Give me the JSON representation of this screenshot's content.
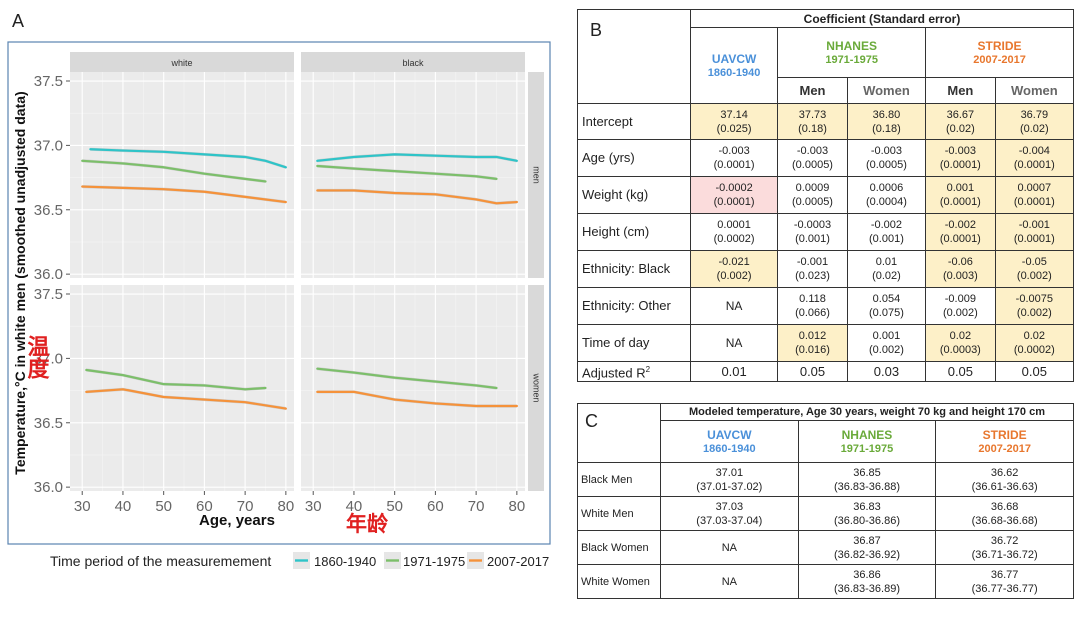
{
  "panel_a": {
    "letter": "A",
    "cjk_temp": "温度",
    "cjk_age": "年龄",
    "chart_data": {
      "type": "line",
      "ylabel": "Temperature,°C in white men (smoothed unadjusted data)",
      "xlabel": "Age, years",
      "xlim": [
        27,
        82
      ],
      "ylim": [
        35.97,
        37.57
      ],
      "x_ticks": [
        "30",
        "40",
        "50",
        "60",
        "70",
        "80"
      ],
      "y_ticks": [
        "36.0",
        "36.5",
        "37.0",
        "37.5"
      ],
      "facet_cols": [
        "white",
        "black"
      ],
      "facet_rows": [
        "men",
        "women"
      ],
      "legend_title": "Time period of the measuremement",
      "legend": [
        {
          "label": "1860-1940",
          "color": "#2ec4c8"
        },
        {
          "label": "1971-1975",
          "color": "#7cbf6a"
        },
        {
          "label": "2007-2017",
          "color": "#f5923a"
        }
      ],
      "grid": true,
      "panels": [
        {
          "col": "white",
          "row": "men",
          "series": [
            {
              "name": "1860-1940",
              "x": [
                32,
                40,
                50,
                60,
                70,
                75,
                80
              ],
              "y": [
                36.97,
                36.96,
                36.95,
                36.93,
                36.91,
                36.88,
                36.83
              ]
            },
            {
              "name": "1971-1975",
              "x": [
                30,
                40,
                50,
                60,
                70,
                75
              ],
              "y": [
                36.88,
                36.86,
                36.83,
                36.78,
                36.74,
                36.72
              ]
            },
            {
              "name": "2007-2017",
              "x": [
                30,
                40,
                50,
                60,
                70,
                80
              ],
              "y": [
                36.68,
                36.67,
                36.66,
                36.64,
                36.6,
                36.56
              ]
            }
          ]
        },
        {
          "col": "black",
          "row": "men",
          "series": [
            {
              "name": "1860-1940",
              "x": [
                31,
                40,
                50,
                60,
                70,
                75,
                80
              ],
              "y": [
                36.88,
                36.91,
                36.93,
                36.92,
                36.91,
                36.91,
                36.88
              ]
            },
            {
              "name": "1971-1975",
              "x": [
                31,
                40,
                50,
                60,
                70,
                75
              ],
              "y": [
                36.84,
                36.82,
                36.8,
                36.78,
                36.76,
                36.74
              ]
            },
            {
              "name": "2007-2017",
              "x": [
                31,
                40,
                50,
                60,
                70,
                75,
                80
              ],
              "y": [
                36.65,
                36.65,
                36.63,
                36.62,
                36.58,
                36.55,
                36.56
              ]
            }
          ]
        },
        {
          "col": "white",
          "row": "women",
          "series": [
            {
              "name": "1971-1975",
              "x": [
                31,
                40,
                50,
                60,
                70,
                75
              ],
              "y": [
                36.91,
                36.87,
                36.8,
                36.79,
                36.76,
                36.77
              ]
            },
            {
              "name": "2007-2017",
              "x": [
                31,
                40,
                50,
                60,
                70,
                80
              ],
              "y": [
                36.74,
                36.76,
                36.7,
                36.68,
                36.66,
                36.61
              ]
            }
          ]
        },
        {
          "col": "black",
          "row": "women",
          "series": [
            {
              "name": "1971-1975",
              "x": [
                31,
                40,
                50,
                60,
                70,
                75
              ],
              "y": [
                36.92,
                36.89,
                36.85,
                36.82,
                36.79,
                36.77
              ]
            },
            {
              "name": "2007-2017",
              "x": [
                31,
                40,
                50,
                60,
                70,
                80
              ],
              "y": [
                36.74,
                36.74,
                36.68,
                36.65,
                36.63,
                36.63
              ]
            }
          ]
        }
      ]
    }
  },
  "panel_b": {
    "letter": "B",
    "header": "Coefficient (Standard error)",
    "sources": [
      {
        "name": "UAVCW",
        "years": "1860-1940",
        "color": "#4a90d9"
      },
      {
        "name": "NHANES",
        "years": "1971-1975",
        "color": "#6aaa3a"
      },
      {
        "name": "STRIDE",
        "years": "2007-2017",
        "color": "#e8772e"
      }
    ],
    "sex_men": "Men",
    "sex_women": "Women",
    "rows": [
      {
        "label": "Intercept",
        "cells": [
          [
            "37.14",
            "(0.025)"
          ],
          [
            "37.73",
            "(0.18)"
          ],
          [
            "36.80",
            "(0.18)"
          ],
          [
            "36.67",
            "(0.02)"
          ],
          [
            "36.79",
            "(0.02)"
          ]
        ]
      },
      {
        "label": "Age (yrs)",
        "cells": [
          [
            "-0.003",
            "(0.0001)"
          ],
          [
            "-0.003",
            "(0.0005)"
          ],
          [
            "-0.003",
            "(0.0005)"
          ],
          [
            "-0.003",
            "(0.0001)"
          ],
          [
            "-0.004",
            "(0.0001)"
          ]
        ]
      },
      {
        "label": "Weight (kg)",
        "cells": [
          [
            "-0.0002",
            "(0.0001)"
          ],
          [
            "0.0009",
            "(0.0005)"
          ],
          [
            "0.0006",
            "(0.0004)"
          ],
          [
            "0.001",
            "(0.0001)"
          ],
          [
            "0.0007",
            "(0.0001)"
          ]
        ]
      },
      {
        "label": "Height (cm)",
        "cells": [
          [
            "0.0001",
            "(0.0002)"
          ],
          [
            "-0.0003",
            "(0.001)"
          ],
          [
            "-0.002",
            "(0.001)"
          ],
          [
            "-0.002",
            "(0.0001)"
          ],
          [
            "-0.001",
            "(0.0001)"
          ]
        ]
      },
      {
        "label": "Ethnicity: Black",
        "cells": [
          [
            "-0.021",
            "(0.002)"
          ],
          [
            "-0.001",
            "(0.023)"
          ],
          [
            "0.01",
            "(0.02)"
          ],
          [
            "-0.06",
            "(0.003)"
          ],
          [
            "-0.05",
            "(0.002)"
          ]
        ]
      },
      {
        "label": "Ethnicity: Other",
        "cells": [
          [
            "NA",
            ""
          ],
          [
            "0.118",
            "(0.066)"
          ],
          [
            "0.054",
            "(0.075)"
          ],
          [
            "-0.009",
            "(0.002)"
          ],
          [
            "-0.0075",
            "(0.002)"
          ]
        ]
      },
      {
        "label": "Time of day",
        "cells": [
          [
            "NA",
            ""
          ],
          [
            "0.012",
            "(0.016)"
          ],
          [
            "0.001",
            "(0.002)"
          ],
          [
            "0.02",
            "(0.0003)"
          ],
          [
            "0.02",
            "(0.0002)"
          ]
        ]
      }
    ],
    "adjusted_label": "Adjusted R",
    "adjusted_sup": "2",
    "adjusted_values": [
      "0.01",
      "0.05",
      "0.03",
      "0.05",
      "0.05"
    ]
  },
  "panel_c": {
    "letter": "C",
    "header": "Modeled temperature, Age 30 years, weight 70 kg and height 170 cm",
    "rows": [
      {
        "label": "Black Men",
        "cells": [
          [
            "37.01",
            "(37.01-37.02)"
          ],
          [
            "36.85",
            "(36.83-36.88)"
          ],
          [
            "36.62",
            "(36.61-36.63)"
          ]
        ]
      },
      {
        "label": "White Men",
        "cells": [
          [
            "37.03",
            "(37.03-37.04)"
          ],
          [
            "36.83",
            "(36.80-36.86)"
          ],
          [
            "36.68",
            "(36.68-36.68)"
          ]
        ]
      },
      {
        "label": "Black Women",
        "cells": [
          [
            "NA",
            ""
          ],
          [
            "36.87",
            "(36.82-36.92)"
          ],
          [
            "36.72",
            "(36.71-36.72)"
          ]
        ]
      },
      {
        "label": "White Women",
        "cells": [
          [
            "NA",
            ""
          ],
          [
            "36.86",
            "(36.83-36.89)"
          ],
          [
            "36.77",
            "(36.77-36.77)"
          ]
        ]
      }
    ]
  }
}
